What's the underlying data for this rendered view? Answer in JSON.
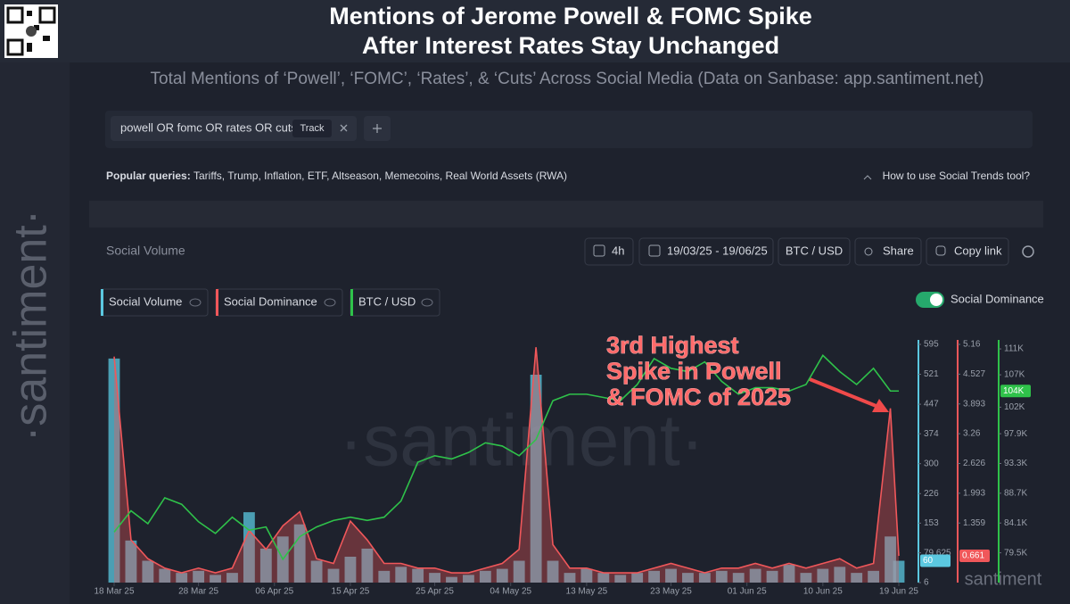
{
  "chart_data": {
    "type": "combo",
    "title": [
      "Mentions of Jerome Powell & FOMC Spike",
      "After Interest Rates Stay Unchanged"
    ],
    "subtitle": "Total Mentions of ‘Powell’, ‘FOMC’, ‘Rates’, & ‘Cuts’ Across Social Media (Data on Sanbase: app.santiment.net)",
    "panel_title": "Social Volume",
    "watermark": "·santiment·",
    "corner_watermark": "santiment",
    "annotation": [
      "3rd Highest",
      "Spike in Powell",
      "& FOMC of 2025"
    ],
    "x": [
      "2025-03-18",
      "2025-03-20",
      "2025-03-22",
      "2025-03-24",
      "2025-03-26",
      "2025-03-28",
      "2025-03-30",
      "2025-04-01",
      "2025-04-03",
      "2025-04-05",
      "2025-04-07",
      "2025-04-09",
      "2025-04-11",
      "2025-04-13",
      "2025-04-15",
      "2025-04-17",
      "2025-04-19",
      "2025-04-21",
      "2025-04-23",
      "2025-04-25",
      "2025-04-27",
      "2025-04-29",
      "2025-05-01",
      "2025-05-03",
      "2025-05-05",
      "2025-05-07",
      "2025-05-09",
      "2025-05-11",
      "2025-05-13",
      "2025-05-15",
      "2025-05-17",
      "2025-05-19",
      "2025-05-21",
      "2025-05-23",
      "2025-05-25",
      "2025-05-27",
      "2025-05-29",
      "2025-05-31",
      "2025-06-02",
      "2025-06-04",
      "2025-06-06",
      "2025-06-08",
      "2025-06-10",
      "2025-06-12",
      "2025-06-14",
      "2025-06-16",
      "2025-06-18",
      "2025-06-19"
    ],
    "xlim": [
      "2025-03-18",
      "2025-06-19"
    ],
    "xticks": [
      {
        "value": "2025-03-18",
        "label": "18 Mar 25"
      },
      {
        "value": "2025-03-28",
        "label": "28 Mar 25"
      },
      {
        "value": "2025-04-06",
        "label": "06 Apr 25"
      },
      {
        "value": "2025-04-15",
        "label": "15 Apr 25"
      },
      {
        "value": "2025-04-25",
        "label": "25 Apr 25"
      },
      {
        "value": "2025-05-04",
        "label": "04 May 25"
      },
      {
        "value": "2025-05-13",
        "label": "13 May 25"
      },
      {
        "value": "2025-05-23",
        "label": "23 May 25"
      },
      {
        "value": "2025-06-01",
        "label": "01 Jun 25"
      },
      {
        "value": "2025-06-10",
        "label": "10 Jun 25"
      },
      {
        "value": "2025-06-19",
        "label": "19 Jun 25"
      }
    ],
    "ylim": [
      6,
      595
    ],
    "yticks": [
      6,
      79.625,
      153,
      226,
      300,
      374,
      447,
      521,
      595
    ],
    "y2lim": [
      0.092,
      5.16
    ],
    "y2ticks": [
      1.359,
      1.993,
      2.626,
      3.26,
      3.893,
      4.527,
      5.16
    ],
    "y3lim": [
      74900,
      111700
    ],
    "y3ticks": [
      {
        "value": 79500,
        "label": "79.5K"
      },
      {
        "value": 84100,
        "label": "84.1K"
      },
      {
        "value": 88700,
        "label": "88.7K"
      },
      {
        "value": 93300,
        "label": "93.3K"
      },
      {
        "value": 97900,
        "label": "97.9K"
      },
      {
        "value": 102000,
        "label": "102K"
      },
      {
        "value": 107000,
        "label": "107K"
      },
      {
        "value": 111000,
        "label": "111K"
      }
    ],
    "grid": false,
    "series": [
      {
        "name": "Social Volume",
        "color": "#5bc8e0",
        "kind": "bar",
        "axis": "y",
        "current": 60,
        "values": [
          560,
          110,
          60,
          40,
          30,
          35,
          25,
          30,
          180,
          90,
          120,
          150,
          60,
          40,
          70,
          90,
          35,
          45,
          40,
          30,
          20,
          25,
          35,
          40,
          60,
          520,
          60,
          30,
          40,
          30,
          25,
          30,
          35,
          40,
          30,
          30,
          35,
          30,
          40,
          35,
          50,
          30,
          40,
          45,
          30,
          35,
          120,
          60
        ]
      },
      {
        "name": "Social Dominance",
        "color": "#f0575a",
        "kind": "area",
        "axis": "y2",
        "current": 0.661,
        "values": [
          4.9,
          1.0,
          0.6,
          0.4,
          0.3,
          0.4,
          0.3,
          0.4,
          1.2,
          0.8,
          1.3,
          1.6,
          0.6,
          0.5,
          1.4,
          1.0,
          0.5,
          0.5,
          0.4,
          0.4,
          0.3,
          0.3,
          0.4,
          0.5,
          0.8,
          5.1,
          0.9,
          0.4,
          0.4,
          0.3,
          0.3,
          0.3,
          0.4,
          0.5,
          0.4,
          0.3,
          0.4,
          0.4,
          0.5,
          0.4,
          0.5,
          0.4,
          0.5,
          0.6,
          0.4,
          0.5,
          3.8,
          0.661
        ]
      },
      {
        "name": "BTC / USD",
        "color": "#2fc24a",
        "kind": "line",
        "axis": "y3",
        "current": {
          "value": 104500,
          "label": "104K"
        },
        "values": [
          82700,
          86000,
          84000,
          88000,
          87000,
          84300,
          82500,
          85000,
          83000,
          83500,
          78500,
          82000,
          83500,
          84500,
          85000,
          84500,
          85000,
          87500,
          93500,
          94500,
          94000,
          95000,
          96500,
          96000,
          94500,
          97000,
          103000,
          104000,
          104000,
          103500,
          103000,
          105500,
          109500,
          108000,
          107500,
          109000,
          106000,
          104000,
          105000,
          105000,
          104500,
          105500,
          110000,
          107500,
          105500,
          108000,
          104500,
          104500
        ]
      }
    ]
  },
  "search": {
    "query": "powell OR fomc OR rates OR cuts",
    "chip": "Track"
  },
  "popular": {
    "label": "Popular queries:",
    "items": "Tariffs, Trump, Inflation, ETF, Altseason, Memecoins, Real World Assets (RWA)",
    "help": "How to use Social Trends tool?"
  },
  "toolbar": {
    "interval": "4h",
    "range": "19/03/25 - 19/06/25",
    "pair": "BTC / USD",
    "share": "Share",
    "copy": "Copy link"
  },
  "toggle": "Social Dominance"
}
